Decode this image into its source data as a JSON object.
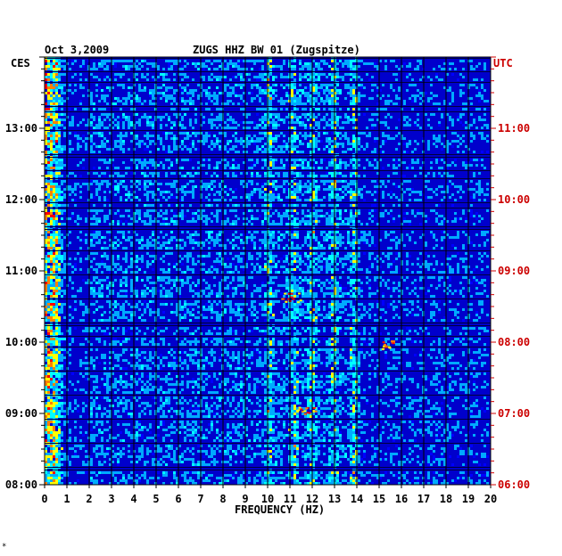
{
  "chart_data": {
    "type": "heatmap",
    "title_date": "Oct 3,2009",
    "title_station": "ZUGS HHZ BW 01 (Zugspitze)",
    "left_tz": "CES",
    "right_tz": "UTC",
    "xlabel": "FREQUENCY (HZ)",
    "x_ticks": [
      "0",
      "1",
      "2",
      "3",
      "4",
      "5",
      "6",
      "7",
      "8",
      "9",
      "10",
      "11",
      "12",
      "13",
      "14",
      "15",
      "16",
      "17",
      "18",
      "19",
      "20"
    ],
    "xlim": [
      0,
      20
    ],
    "left_ticks": [
      "08:00",
      "09:00",
      "10:00",
      "11:00",
      "12:00",
      "13:00"
    ],
    "right_ticks": [
      "06:00",
      "07:00",
      "08:00",
      "09:00",
      "10:00",
      "11:00"
    ],
    "time_range_ces": [
      "08:00",
      "13:55"
    ],
    "colormap": [
      "#00008c",
      "#0000ff",
      "#00aaff",
      "#00ffff",
      "#ffff00",
      "#ff8000",
      "#ff0000"
    ],
    "background_color": "#0000cc",
    "hot_bands_hz": [
      0.5,
      10.1,
      11.2,
      12.0,
      13.0,
      13.9
    ],
    "events": [
      {
        "time_ces": "09:02",
        "freq_hz": 11.7,
        "note": "diagonal burst"
      },
      {
        "time_ces": "09:58",
        "freq_hz": 15.2,
        "note": "strong patch"
      },
      {
        "time_ces": "10:38",
        "freq_hz": 11.0,
        "note": "burst"
      }
    ]
  },
  "footnote": "*"
}
